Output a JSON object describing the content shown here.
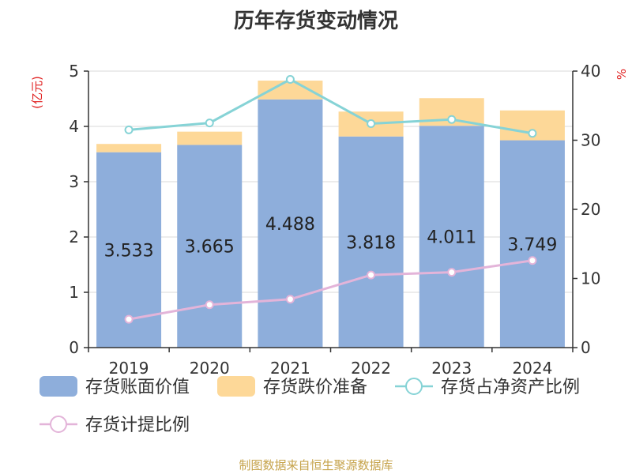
{
  "title": "历年存货变动情况",
  "source": "制图数据来自恒生聚源数据库",
  "colors": {
    "book_value": "#8eaedb",
    "impairment": "#fdd898",
    "net_asset_ratio": "#86d3d6",
    "provision_ratio": "#e3b4d9",
    "axis": "#333333",
    "unit": "#e02020"
  },
  "chart_data": {
    "type": "bar",
    "title": "历年存货变动情况",
    "categories": [
      "2019",
      "2020",
      "2021",
      "2022",
      "2023",
      "2024"
    ],
    "y_left": {
      "label": "(亿元)",
      "ylim": [
        0,
        5
      ],
      "ticks": [
        "0",
        "1",
        "2",
        "3",
        "4",
        "5"
      ]
    },
    "y_right": {
      "label": "%",
      "ylim": [
        0,
        40
      ],
      "ticks": [
        "0",
        "10",
        "20",
        "30",
        "40"
      ]
    },
    "grid": true,
    "legend_position": "bottom",
    "series": [
      {
        "name": "存货账面价值",
        "kind": "bar",
        "axis": "left",
        "stack": "inv",
        "values": [
          3.533,
          3.665,
          4.488,
          3.818,
          4.011,
          3.749
        ],
        "labels": [
          "3.533",
          "3.665",
          "4.488",
          "3.818",
          "4.011",
          "3.749"
        ]
      },
      {
        "name": "存货跌价准备",
        "kind": "bar",
        "axis": "left",
        "stack": "inv",
        "values": [
          0.15,
          0.24,
          0.34,
          0.45,
          0.5,
          0.54
        ]
      },
      {
        "name": "存货占净资产比例",
        "kind": "line",
        "axis": "right",
        "values": [
          31.5,
          32.5,
          38.8,
          32.4,
          33.0,
          31.0
        ]
      },
      {
        "name": "存货计提比例",
        "kind": "line",
        "axis": "right",
        "values": [
          4.1,
          6.2,
          7.0,
          10.5,
          10.9,
          12.6
        ]
      }
    ]
  }
}
